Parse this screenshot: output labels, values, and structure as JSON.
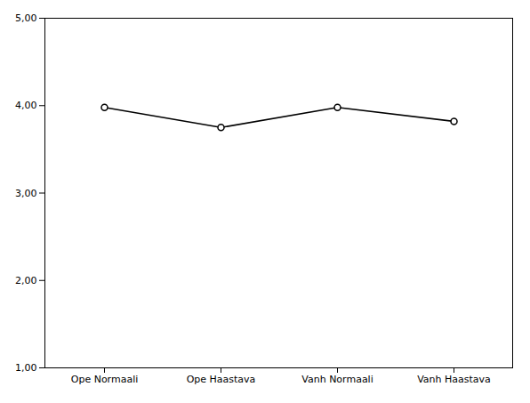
{
  "chart_data": {
    "type": "line",
    "categories": [
      "Ope Normaali",
      "Ope Haastava",
      "Vanh Normaali",
      "Vanh Haastava"
    ],
    "values": [
      3.98,
      3.75,
      3.98,
      3.82
    ],
    "color": "#000000",
    "marker": "circle",
    "ylim": [
      1.0,
      5.0
    ],
    "yticks": [
      {
        "value": 1.0,
        "label": "1,00"
      },
      {
        "value": 2.0,
        "label": "2,00"
      },
      {
        "value": 3.0,
        "label": "3,00"
      },
      {
        "value": 4.0,
        "label": "4,00"
      },
      {
        "value": 5.0,
        "label": "5,00"
      }
    ],
    "grid": false
  }
}
